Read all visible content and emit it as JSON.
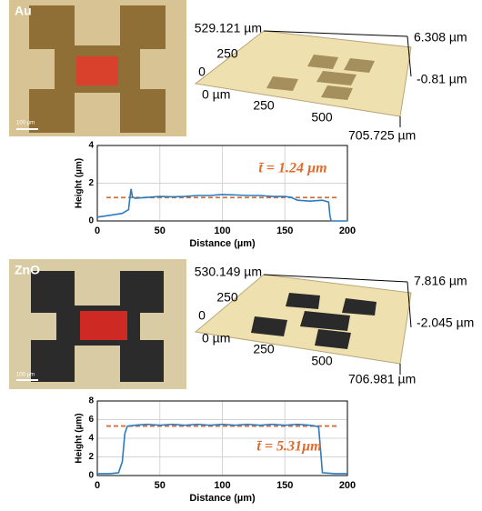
{
  "panels": [
    {
      "micrograph": {
        "label": "Au",
        "scale_bar": "100 µm"
      },
      "surface_plot": {
        "y_max": "529.121 µm",
        "y_ticks": [
          "250",
          "0"
        ],
        "x_ticks": [
          "0 µm",
          "250",
          "500"
        ],
        "x_max": "705.725 µm",
        "z_max": "6.308 µm",
        "z_min": "-0.81 µm"
      }
    },
    {
      "micrograph": {
        "label": "ZnO",
        "scale_bar": "100 µm"
      },
      "surface_plot": {
        "y_max": "530.149 µm",
        "y_ticks": [
          "250",
          "0"
        ],
        "x_ticks": [
          "0 µm",
          "250",
          "500"
        ],
        "x_max": "706.981 µm",
        "z_max": "7.816 µm",
        "z_min": "-2.045 µm"
      }
    }
  ],
  "chart_data": [
    {
      "type": "line",
      "x_label": "Distance (µm)",
      "y_label": "Height (µm)",
      "annotation": "t̄ = 1.24 µm",
      "x": [
        0,
        10,
        20,
        25,
        26,
        27,
        28,
        30,
        40,
        50,
        60,
        70,
        80,
        90,
        100,
        110,
        120,
        130,
        140,
        150,
        155,
        160,
        170,
        180,
        185,
        186,
        187,
        190,
        200
      ],
      "series": [
        {
          "color": "#2b7bc0",
          "values": [
            0.2,
            0.3,
            0.4,
            0.6,
            1.2,
            1.7,
            1.3,
            1.2,
            1.25,
            1.3,
            1.28,
            1.3,
            1.35,
            1.35,
            1.4,
            1.38,
            1.35,
            1.35,
            1.3,
            1.3,
            1.25,
            1.1,
            1.05,
            1.1,
            1.0,
            0.3,
            0.0,
            0.0,
            0.0
          ]
        }
      ],
      "mean_line": {
        "value": 1.24,
        "color": "#e06a2c"
      },
      "xlim": [
        0,
        200
      ],
      "ylim": [
        0,
        4
      ],
      "xticks": [
        0,
        50,
        100,
        150,
        200
      ],
      "yticks": [
        0,
        2,
        4
      ],
      "grid": true
    },
    {
      "type": "line",
      "x_label": "Distance (µm)",
      "y_label": "Height (µm)",
      "annotation": "t̄ = 5.31µm",
      "x": [
        0,
        10,
        17,
        20,
        22,
        24,
        30,
        40,
        50,
        60,
        70,
        80,
        90,
        100,
        110,
        120,
        130,
        140,
        150,
        160,
        170,
        175,
        177,
        179,
        180,
        190,
        200
      ],
      "series": [
        {
          "color": "#2b7bc0",
          "values": [
            0.2,
            0.2,
            0.3,
            1.5,
            4.5,
            5.3,
            5.4,
            5.5,
            5.4,
            5.5,
            5.4,
            5.5,
            5.4,
            5.5,
            5.4,
            5.5,
            5.4,
            5.5,
            5.4,
            5.5,
            5.4,
            5.3,
            5.2,
            2.0,
            0.3,
            0.2,
            0.2
          ]
        }
      ],
      "mean_line": {
        "value": 5.31,
        "color": "#e06a2c"
      },
      "xlim": [
        0,
        200
      ],
      "ylim": [
        0,
        8
      ],
      "xticks": [
        0,
        50,
        100,
        150,
        200
      ],
      "yticks": [
        0,
        2,
        4,
        6,
        8
      ],
      "grid": true
    }
  ]
}
